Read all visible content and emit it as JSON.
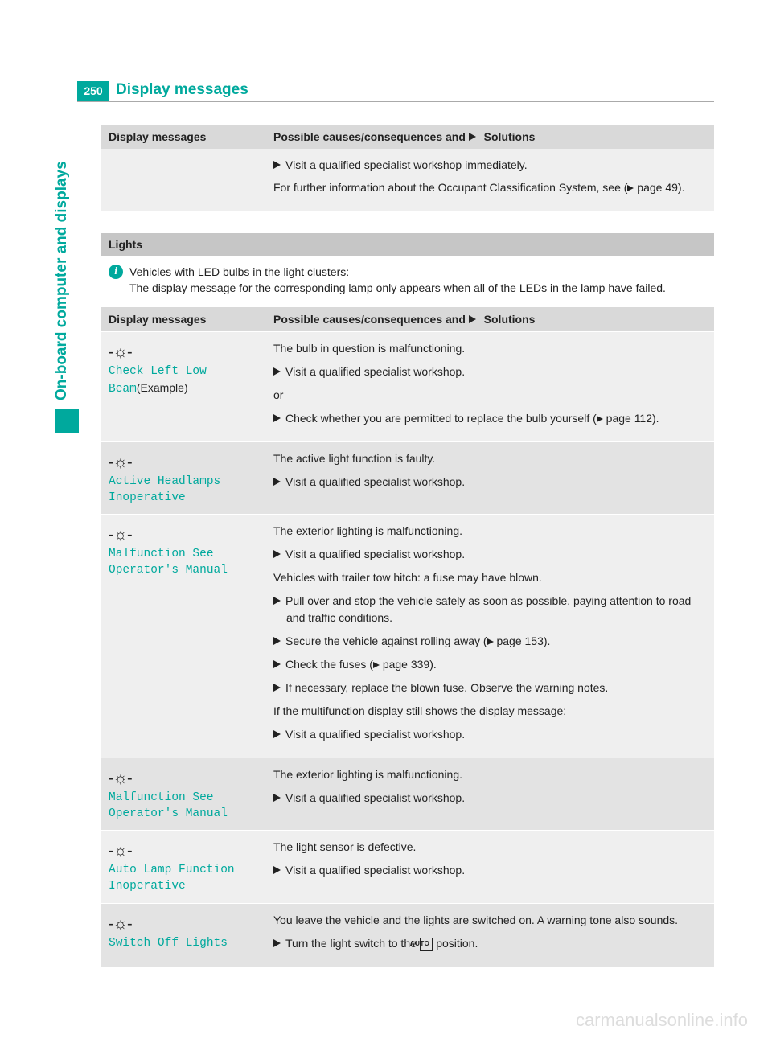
{
  "page": {
    "number": "250",
    "title": "Display messages",
    "side_tab": "On-board computer and displays"
  },
  "glyphs": {
    "bulb": "-☼-",
    "auto": "AUTO"
  },
  "table1": {
    "header_col1": "Display messages",
    "header_col2_a": "Possible causes/consequences and ",
    "header_col2_b": " Solutions",
    "row_body_1": "Visit a qualified specialist workshop immediately.",
    "row_body_2a": "For further information about the Occupant Classification System, see (",
    "row_body_2b": " page 49)."
  },
  "lights_section": {
    "heading": "Lights",
    "info_line1": "Vehicles with LED bulbs in the light clusters:",
    "info_line2": "The display message for the corresponding lamp only appears when all of the LEDs in the lamp have failed.",
    "header_col1": "Display messages",
    "header_col2_a": "Possible causes/consequences and ",
    "header_col2_b": " Solutions",
    "rows": [
      {
        "msg_line1": "Check Left Low",
        "msg_line2_mono": "Beam",
        "msg_line2_plain": "(Example)",
        "body": [
          {
            "t": "p",
            "v": "The bulb in question is malfunctioning."
          },
          {
            "t": "b",
            "v": "Visit a qualified specialist workshop."
          },
          {
            "t": "p",
            "v": "or"
          },
          {
            "t": "b",
            "v": "Check whether you are permitted to replace the bulb yourself ( page 112).",
            "ref": 18
          }
        ]
      },
      {
        "msg_line1": "Active Headlamps",
        "msg_line2_mono": "Inoperative",
        "body": [
          {
            "t": "p",
            "v": "The active light function is faulty."
          },
          {
            "t": "b",
            "v": "Visit a qualified specialist workshop."
          }
        ]
      },
      {
        "msg_line1": "Malfunction See",
        "msg_line2_mono": "Operator's Manual",
        "body": [
          {
            "t": "p",
            "v": "The exterior lighting is malfunctioning."
          },
          {
            "t": "b",
            "v": "Visit a qualified specialist workshop."
          },
          {
            "t": "p",
            "v": "Vehicles with trailer tow hitch: a fuse may have blown."
          },
          {
            "t": "b",
            "v": "Pull over and stop the vehicle safely as soon as possible, paying attention to road and traffic conditions."
          },
          {
            "t": "b",
            "v": "Secure the vehicle against rolling away ( page 153).",
            "ref": 13
          },
          {
            "t": "b",
            "v": "Check the fuses ( page 339).",
            "ref": 3
          },
          {
            "t": "b",
            "v": "If necessary, replace the blown fuse. Observe the warning notes."
          },
          {
            "t": "p",
            "v": "If the multifunction display still shows the display message:"
          },
          {
            "t": "b",
            "v": "Visit a qualified specialist workshop."
          }
        ]
      },
      {
        "msg_line1": "Malfunction See",
        "msg_line2_mono": "Operator's Manual",
        "body": [
          {
            "t": "p",
            "v": "The exterior lighting is malfunctioning."
          },
          {
            "t": "b",
            "v": "Visit a qualified specialist workshop."
          }
        ]
      },
      {
        "msg_line1": "Auto Lamp Function",
        "msg_line2_mono": "Inoperative",
        "body": [
          {
            "t": "p",
            "v": "The light sensor is defective."
          },
          {
            "t": "b",
            "v": "Visit a qualified specialist workshop."
          }
        ]
      },
      {
        "msg_line1": "Switch Off Lights",
        "body": [
          {
            "t": "p",
            "v": "You leave the vehicle and the lights are switched on. A warning tone also sounds."
          },
          {
            "t": "b",
            "v": "Turn the light switch to the  position.",
            "auto": 29
          }
        ]
      }
    ]
  },
  "watermark": "carmanualsonline.info"
}
